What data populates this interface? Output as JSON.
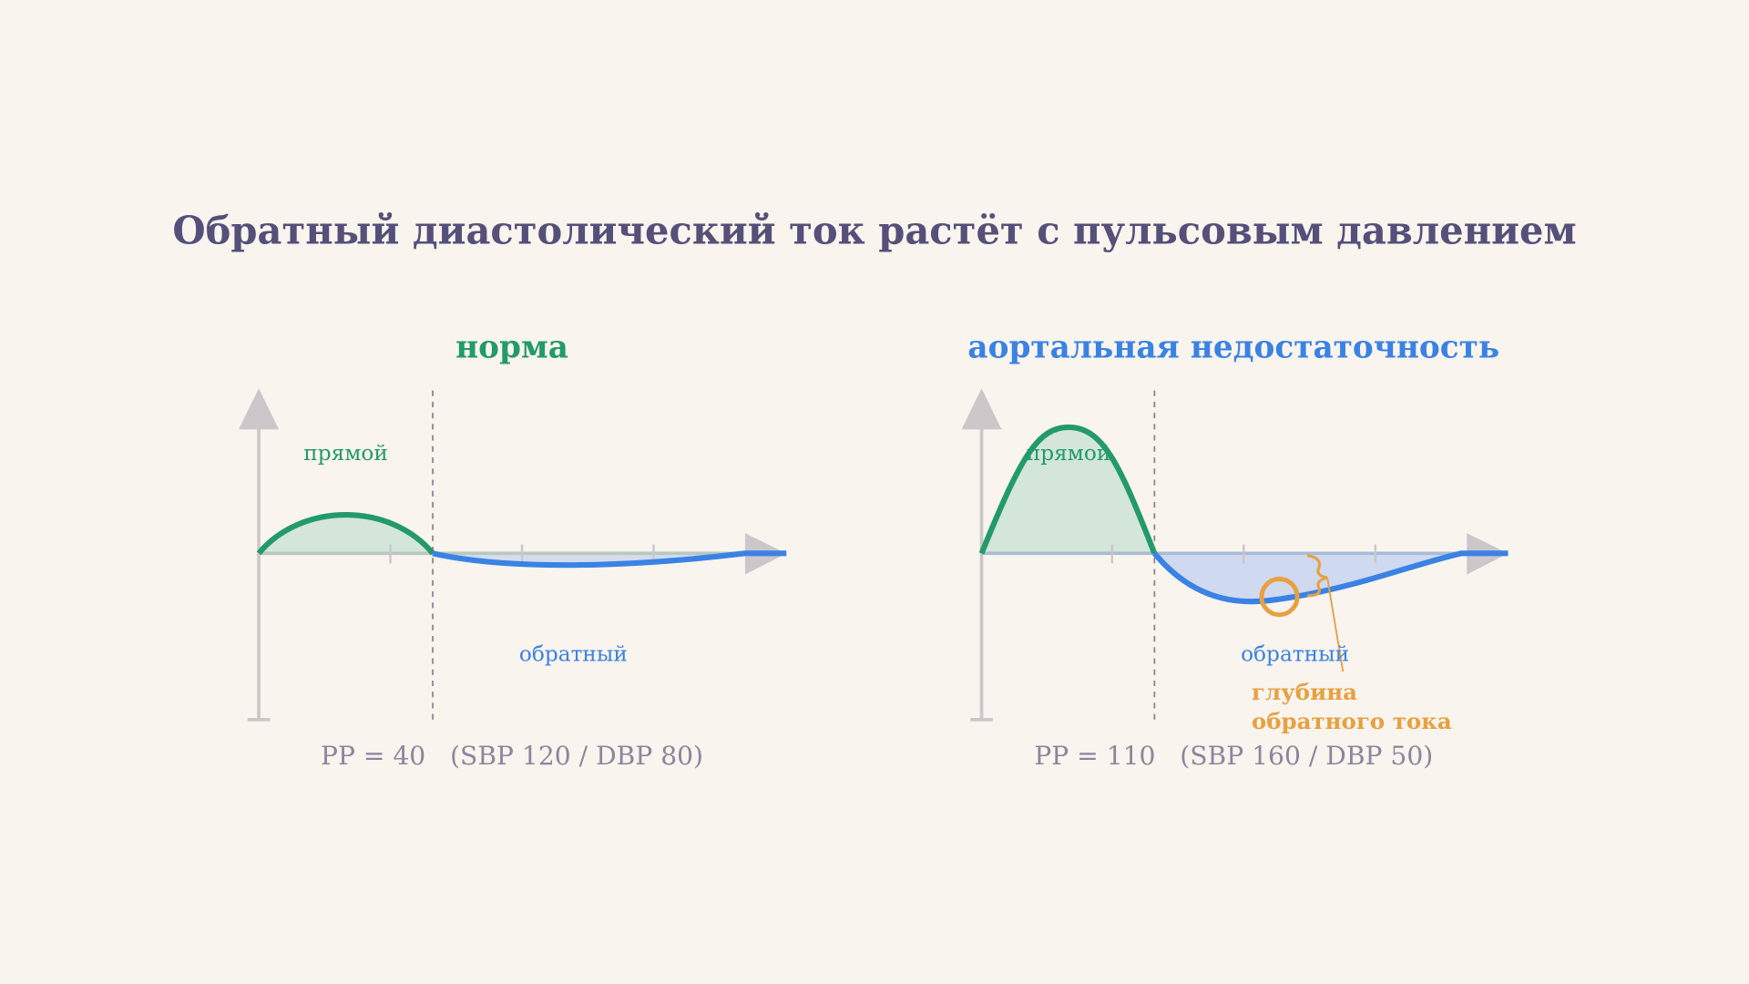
{
  "title": "Обратный диастолический ток растёт с пульсовым давлением",
  "panels": [
    {
      "title": "норма",
      "forward_label": "прямой",
      "reverse_label": "обратный",
      "caption": "PP = 40   (SBP 120 / DBP 80)"
    },
    {
      "title": "аортальная недостаточность",
      "forward_label": "прямой",
      "reverse_label": "обратный",
      "annotation": [
        "глубина",
        "обратного тока"
      ],
      "caption": "PP = 110   (SBP 160 / DBP 50)"
    }
  ]
}
